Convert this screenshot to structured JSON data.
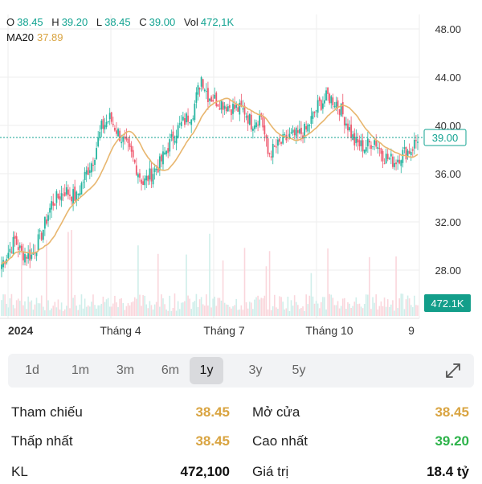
{
  "header": {
    "ohlc": [
      {
        "key": "O",
        "value": "38.45"
      },
      {
        "key": "H",
        "value": "39.20"
      },
      {
        "key": "L",
        "value": "38.45"
      },
      {
        "key": "C",
        "value": "39.00"
      },
      {
        "key": "Vol",
        "value": "472,1K"
      }
    ],
    "ma_label": "MA20",
    "ma_value": "37.89"
  },
  "chart_data": {
    "type": "candlestick",
    "title": "",
    "ylim": [
      26,
      49
    ],
    "y_ticks": [
      "48.00",
      "44.00",
      "40.00",
      "36.00",
      "32.00",
      "28.00"
    ],
    "y_tick_values": [
      48,
      44,
      40,
      36,
      32,
      28
    ],
    "x_ticks": [
      "2024",
      "Tháng 4",
      "Tháng 7",
      "Tháng 10",
      "9"
    ],
    "x_tick_positions": [
      0,
      52,
      117,
      182,
      246
    ],
    "current_price": 39.0,
    "current_price_label": "39.00",
    "current_volume_label": "472.1K",
    "grid": true,
    "colors": {
      "up": "#26b5a0",
      "down": "#ef5a6f",
      "ma": "#e8b66e",
      "price_line": "#12a391"
    },
    "anchors": [
      [
        0,
        28.5
      ],
      [
        8,
        30.5
      ],
      [
        12,
        29.4
      ],
      [
        18,
        29.2
      ],
      [
        24,
        31.0
      ],
      [
        30,
        33.5
      ],
      [
        38,
        34.6
      ],
      [
        45,
        34.0
      ],
      [
        50,
        35.8
      ],
      [
        55,
        37.2
      ],
      [
        60,
        39.8
      ],
      [
        65,
        40.6
      ],
      [
        70,
        39.4
      ],
      [
        78,
        37.5
      ],
      [
        85,
        35.2
      ],
      [
        95,
        36.8
      ],
      [
        105,
        39.6
      ],
      [
        115,
        41.2
      ],
      [
        120,
        44.0
      ],
      [
        124,
        42.5
      ],
      [
        130,
        42.0
      ],
      [
        138,
        41.5
      ],
      [
        146,
        41.2
      ],
      [
        150,
        40.2
      ],
      [
        156,
        40.8
      ],
      [
        160,
        37.6
      ],
      [
        166,
        38.3
      ],
      [
        172,
        39.0
      ],
      [
        178,
        39.2
      ],
      [
        183,
        39.6
      ],
      [
        190,
        41.6
      ],
      [
        196,
        42.4
      ],
      [
        202,
        41.8
      ],
      [
        208,
        40.0
      ],
      [
        212,
        38.6
      ],
      [
        218,
        38.2
      ],
      [
        224,
        38.8
      ],
      [
        230,
        37.4
      ],
      [
        236,
        37.0
      ],
      [
        240,
        37.6
      ],
      [
        246,
        38.0
      ],
      [
        250,
        39.0
      ]
    ],
    "n_candles": 251,
    "ma_period": 20,
    "volume_scale_max": 1.0
  },
  "timeframes": {
    "options": [
      "1d",
      "1m",
      "3m",
      "6m",
      "1y",
      "3y",
      "5y"
    ],
    "active": "1y"
  },
  "stats": {
    "left": [
      {
        "label": "Tham chiếu",
        "value": "38.45",
        "color": "#d9a441"
      },
      {
        "label": "Thấp nhất",
        "value": "38.45",
        "color": "#d9a441"
      },
      {
        "label": "KL",
        "value": "472,100",
        "color": "#111111"
      }
    ],
    "right": [
      {
        "label": "Mở cửa",
        "value": "38.45",
        "color": "#d9a441"
      },
      {
        "label": "Cao nhất",
        "value": "39.20",
        "color": "#2db34a"
      },
      {
        "label": "Giá trị",
        "value": "18.4 tỷ",
        "color": "#111111"
      }
    ]
  }
}
